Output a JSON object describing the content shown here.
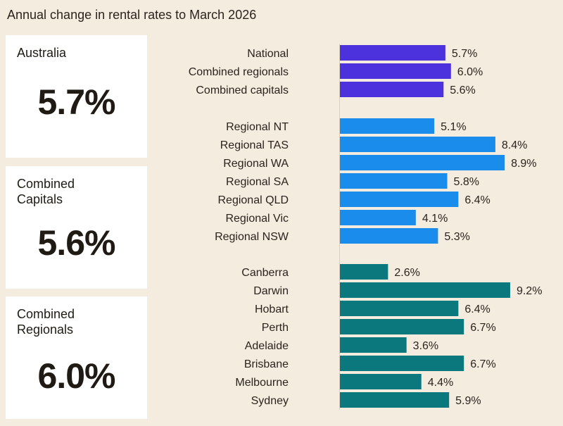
{
  "chart_data": {
    "type": "bar",
    "orientation": "horizontal",
    "title": "Annual change in rental rates to March 2026",
    "unit": "%",
    "groups": [
      {
        "color": "#4b32dc",
        "categories": [
          "National",
          "Combined regionals",
          "Combined capitals"
        ],
        "values": [
          5.7,
          6.0,
          5.6
        ],
        "labels": [
          "5.7%",
          "6.0%",
          "5.6%"
        ]
      },
      {
        "color": "#1a8cec",
        "categories": [
          "Regional NT",
          "Regional TAS",
          "Regional WA",
          "Regional SA",
          "Regional QLD",
          "Regional Vic",
          "Regional NSW"
        ],
        "values": [
          5.1,
          8.4,
          8.9,
          5.8,
          6.4,
          4.1,
          5.3
        ],
        "labels": [
          "5.1%",
          "8.4%",
          "8.9%",
          "5.8%",
          "6.4%",
          "4.1%",
          "5.3%"
        ]
      },
      {
        "color": "#0a787c",
        "categories": [
          "Canberra",
          "Darwin",
          "Hobart",
          "Perth",
          "Adelaide",
          "Brisbane",
          "Melbourne",
          "Sydney"
        ],
        "values": [
          2.6,
          9.2,
          6.4,
          6.7,
          3.6,
          6.7,
          4.4,
          5.9
        ],
        "labels": [
          "2.6%",
          "9.2%",
          "6.4%",
          "6.7%",
          "3.6%",
          "6.7%",
          "4.4%",
          "5.9%"
        ]
      }
    ],
    "grid": false,
    "legend": "none"
  },
  "cards": [
    {
      "label": "Australia",
      "value": "5.7%"
    },
    {
      "label": "Combined Capitals",
      "value": "5.6%"
    },
    {
      "label": "Combined Regionals",
      "value": "6.0%"
    }
  ]
}
